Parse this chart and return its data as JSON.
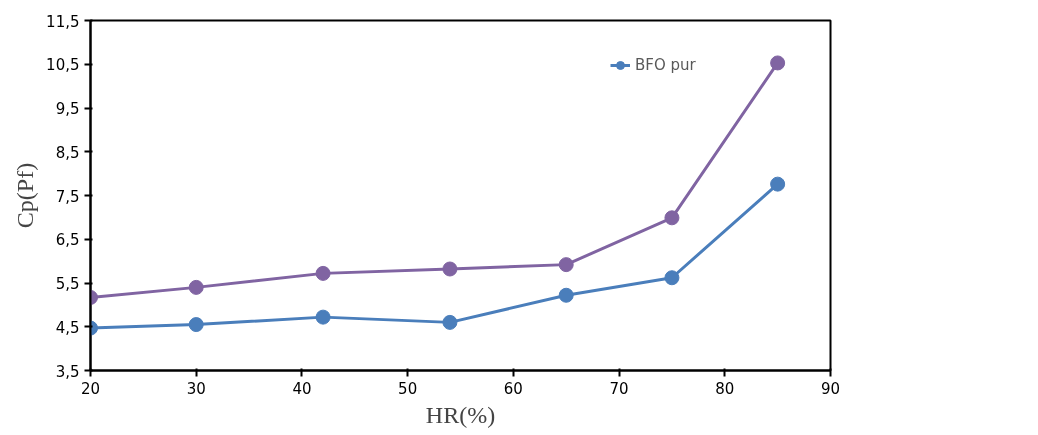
{
  "chart_data": {
    "type": "line",
    "xlabel": "HR(%)",
    "ylabel": "Cp(Pf)",
    "xlim": [
      20,
      90
    ],
    "xticks": [
      20,
      30,
      40,
      50,
      60,
      70,
      80,
      90
    ],
    "ylim": [
      3.5,
      11.5
    ],
    "yticks": [
      {
        "value": 3.5,
        "label": "3,5"
      },
      {
        "value": 4.5,
        "label": "4,5"
      },
      {
        "value": 5.5,
        "label": "5,5"
      },
      {
        "value": 6.5,
        "label": "6,5"
      },
      {
        "value": 7.5,
        "label": "7,5"
      },
      {
        "value": 8.5,
        "label": "8,5"
      },
      {
        "value": 9.5,
        "label": "9,5"
      },
      {
        "value": 10.5,
        "label": "10,5"
      },
      {
        "value": 11.5,
        "label": "11,5"
      }
    ],
    "x": [
      20,
      30,
      42,
      54,
      65,
      75,
      85
    ],
    "series": [
      {
        "name": "BFO pur",
        "color": "#4a7ebb",
        "values": [
          4.47,
          4.55,
          4.72,
          4.6,
          5.22,
          5.62,
          7.76
        ]
      },
      {
        "color": "#8064a2",
        "values": [
          5.17,
          5.4,
          5.72,
          5.82,
          5.92,
          6.99,
          10.53
        ]
      }
    ],
    "marker": "circle",
    "line_style": "solid",
    "grid": false,
    "legend": "top right"
  }
}
